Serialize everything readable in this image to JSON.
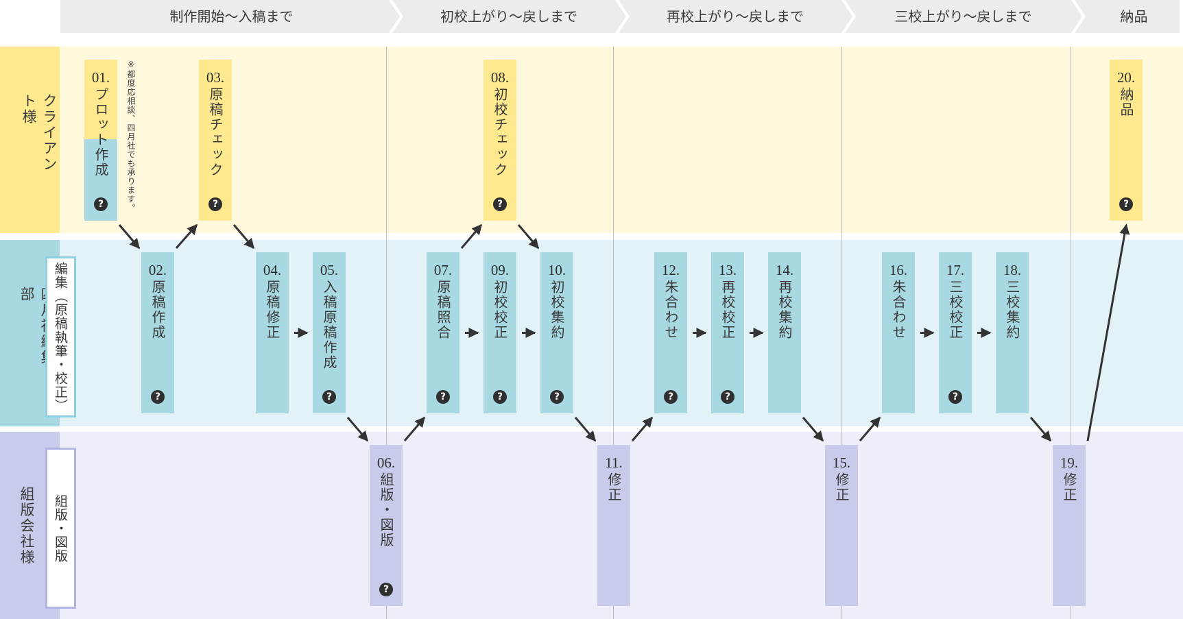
{
  "colors": {
    "header_bg": "#ececec",
    "client_lane_bg": "#fef8dc",
    "client_accent": "#fee98f",
    "editorial_lane_bg": "#e3f2f7",
    "editorial_accent": "#a8d9e3",
    "editorial_border": "#8ed0e0",
    "typesetting_lane_bg": "#eeeef8",
    "typesetting_accent": "#c8cbea",
    "typesetting_border": "#b1b5e5",
    "arrow": "#333333"
  },
  "phases": [
    {
      "label": "制作開始〜入稿まで"
    },
    {
      "label": "初校上がり〜戻しまで"
    },
    {
      "label": "再校上がり〜戻しまで"
    },
    {
      "label": "三校上がり〜戻しまで"
    },
    {
      "label": "納品"
    }
  ],
  "lanes": {
    "client": {
      "title": "クライアント様"
    },
    "editorial": {
      "title": "四月社編集部",
      "sub": "編集（原稿執筆・校正）"
    },
    "typesetting": {
      "title": "組版会社様",
      "sub": "組版・図版"
    }
  },
  "note": "※都度応相談、四月社でも承ります。",
  "help_glyph": "?",
  "steps": [
    {
      "no": "01.",
      "label": "プロット作成",
      "lane": "client",
      "help": true
    },
    {
      "no": "02.",
      "label": "原稿作成",
      "lane": "editorial",
      "help": true
    },
    {
      "no": "03.",
      "label": "原稿チェック",
      "lane": "client",
      "help": true
    },
    {
      "no": "04.",
      "label": "原稿修正",
      "lane": "editorial",
      "help": false
    },
    {
      "no": "05.",
      "label": "入稿原稿作成",
      "lane": "editorial",
      "help": true
    },
    {
      "no": "06.",
      "label": "組版・図版",
      "lane": "typesetting",
      "help": true
    },
    {
      "no": "07.",
      "label": "原稿照合",
      "lane": "editorial",
      "help": true
    },
    {
      "no": "08.",
      "label": "初校チェック",
      "lane": "client",
      "help": true
    },
    {
      "no": "09.",
      "label": "初校校正",
      "lane": "editorial",
      "help": true
    },
    {
      "no": "10.",
      "label": "初校集約",
      "lane": "editorial",
      "help": true
    },
    {
      "no": "11.",
      "label": "修正",
      "lane": "typesetting",
      "help": false
    },
    {
      "no": "12.",
      "label": "朱合わせ",
      "lane": "editorial",
      "help": true
    },
    {
      "no": "13.",
      "label": "再校校正",
      "lane": "editorial",
      "help": true
    },
    {
      "no": "14.",
      "label": "再校集約",
      "lane": "editorial",
      "help": false
    },
    {
      "no": "15.",
      "label": "修正",
      "lane": "typesetting",
      "help": false
    },
    {
      "no": "16.",
      "label": "朱合わせ",
      "lane": "editorial",
      "help": false
    },
    {
      "no": "17.",
      "label": "三校校正",
      "lane": "editorial",
      "help": true
    },
    {
      "no": "18.",
      "label": "三校集約",
      "lane": "editorial",
      "help": false
    },
    {
      "no": "19.",
      "label": "修正",
      "lane": "typesetting",
      "help": false
    },
    {
      "no": "20.",
      "label": "納品",
      "lane": "client",
      "help": true
    }
  ],
  "flow": [
    [
      "01.",
      "02."
    ],
    [
      "02.",
      "03."
    ],
    [
      "03.",
      "04."
    ],
    [
      "04.",
      "05."
    ],
    [
      "05.",
      "06."
    ],
    [
      "06.",
      "07."
    ],
    [
      "07.",
      "08."
    ],
    [
      "07.",
      "09."
    ],
    [
      "08.",
      "10."
    ],
    [
      "09.",
      "10."
    ],
    [
      "10.",
      "11."
    ],
    [
      "11.",
      "12."
    ],
    [
      "12.",
      "13."
    ],
    [
      "13.",
      "14."
    ],
    [
      "14.",
      "15."
    ],
    [
      "15.",
      "16."
    ],
    [
      "16.",
      "17."
    ],
    [
      "17.",
      "18."
    ],
    [
      "18.",
      "19."
    ],
    [
      "19.",
      "20."
    ]
  ]
}
